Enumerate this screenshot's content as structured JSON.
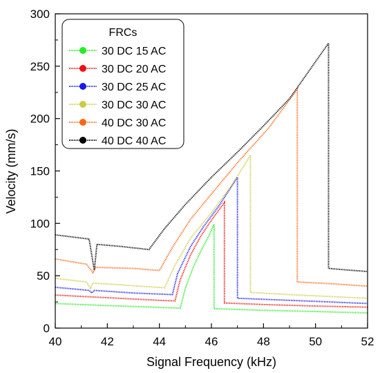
{
  "chart_data": {
    "type": "line",
    "title": "",
    "xlabel": "Signal Frequency (kHz)",
    "ylabel": "Velocity (mm/s)",
    "xlim": [
      40,
      52
    ],
    "ylim": [
      0,
      300
    ],
    "xticks": [
      40,
      42,
      44,
      46,
      48,
      50,
      52
    ],
    "yticks": [
      0,
      50,
      100,
      150,
      200,
      250,
      300
    ],
    "grid": false,
    "legend": {
      "title": "FRCs",
      "placement": "top-left"
    },
    "series": [
      {
        "name": "30 DC 15 AC",
        "color": "#22ee22",
        "points": [
          [
            40,
            23.5
          ],
          [
            42,
            21.5
          ],
          [
            44,
            19.8
          ],
          [
            44.8,
            19
          ],
          [
            45.0,
            38
          ],
          [
            45.3,
            58
          ],
          [
            45.6,
            74
          ],
          [
            45.9,
            88
          ],
          [
            46.1,
            99
          ],
          [
            46.1,
            18.5
          ],
          [
            48,
            17
          ],
          [
            50,
            15.8
          ],
          [
            52,
            14.5
          ]
        ]
      },
      {
        "name": "30 DC 20 AC",
        "color": "#ee1111",
        "points": [
          [
            40,
            31.5
          ],
          [
            42,
            29
          ],
          [
            44,
            26.5
          ],
          [
            44.6,
            26
          ],
          [
            44.8,
            46
          ],
          [
            45.2,
            70
          ],
          [
            45.6,
            88
          ],
          [
            46.0,
            103
          ],
          [
            46.5,
            120
          ],
          [
            46.5,
            24
          ],
          [
            48,
            22.5
          ],
          [
            50,
            21
          ],
          [
            52,
            20
          ]
        ]
      },
      {
        "name": "30 DC 25 AC",
        "color": "#1a1aee",
        "points": [
          [
            40,
            39
          ],
          [
            41.3,
            36
          ],
          [
            41.4,
            33.5
          ],
          [
            41.5,
            36
          ],
          [
            43,
            33.5
          ],
          [
            44.5,
            32
          ],
          [
            44.7,
            52
          ],
          [
            45.2,
            78
          ],
          [
            45.7,
            97
          ],
          [
            46.3,
            117
          ],
          [
            47.0,
            144
          ],
          [
            47.0,
            28.5
          ],
          [
            48,
            27.5
          ],
          [
            50,
            25.5
          ],
          [
            52,
            23.5
          ]
        ]
      },
      {
        "name": "30 DC 30 AC",
        "color": "#cccc44",
        "points": [
          [
            40,
            47.5
          ],
          [
            41.2,
            44
          ],
          [
            41.35,
            38
          ],
          [
            41.45,
            43
          ],
          [
            43,
            40.5
          ],
          [
            44.2,
            38.5
          ],
          [
            44.6,
            60
          ],
          [
            45.2,
            86
          ],
          [
            46,
            110
          ],
          [
            46.8,
            137
          ],
          [
            47.5,
            165
          ],
          [
            47.5,
            34
          ],
          [
            49,
            32
          ],
          [
            52,
            28.5
          ]
        ]
      },
      {
        "name": "40 DC 30 AC",
        "color": "#ff6611",
        "points": [
          [
            40,
            66
          ],
          [
            41.2,
            61
          ],
          [
            41.45,
            53
          ],
          [
            41.55,
            58
          ],
          [
            43,
            57
          ],
          [
            44.0,
            55
          ],
          [
            44.5,
            77
          ],
          [
            45.2,
            104
          ],
          [
            46,
            128
          ],
          [
            47,
            158
          ],
          [
            48.2,
            191
          ],
          [
            49.3,
            228
          ],
          [
            49.3,
            44
          ],
          [
            50.5,
            42.5
          ],
          [
            52,
            40
          ]
        ]
      },
      {
        "name": "40 DC 40 AC",
        "color": "#000000",
        "points": [
          [
            40,
            89
          ],
          [
            41.3,
            85
          ],
          [
            41.5,
            55
          ],
          [
            41.6,
            80
          ],
          [
            42.5,
            78
          ],
          [
            43.6,
            75
          ],
          [
            44.2,
            95
          ],
          [
            45,
            118
          ],
          [
            46,
            144
          ],
          [
            47,
            168
          ],
          [
            48,
            193
          ],
          [
            49,
            219
          ],
          [
            50.5,
            272
          ],
          [
            50.5,
            57
          ],
          [
            51.2,
            55.5
          ],
          [
            52,
            54
          ]
        ]
      }
    ]
  }
}
